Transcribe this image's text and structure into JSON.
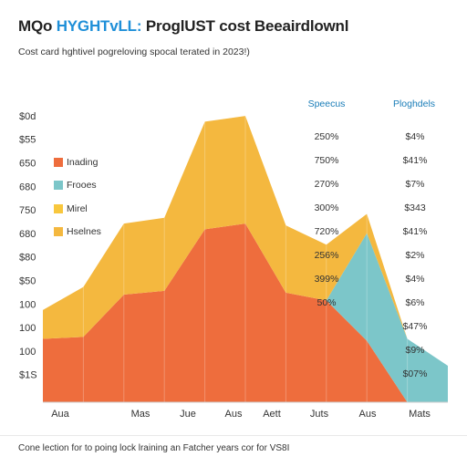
{
  "title_prefix": "MQo ",
  "title_highlight": "HYGHTvLL:",
  "title_rest": " ProglUST cost Beeairdlownl",
  "subtitle": "Cost card hghtivel pogreloving spocal terated in 2023!)",
  "footer": "Cone lection for to poing lock lraining an Fatcher years cor for VS8I",
  "chart_data": {
    "type": "area",
    "title": "MQo HYGHTvLL: ProglUST cost Beeairdlownl",
    "subtitle": "Cost card hghtivel pogreloving spocal terated in 2023!)",
    "y_tick_labels": [
      "$0d",
      "$55",
      "650",
      "680",
      "750",
      "680",
      "$80",
      "$50",
      "100",
      "100",
      "100",
      "$1S"
    ],
    "x_tick_labels": [
      "Aua",
      "Mas",
      "Jue",
      "Aus",
      "Aett",
      "Juts",
      "Aus",
      "Mats"
    ],
    "x": [
      0,
      1,
      2,
      3,
      4,
      5,
      6,
      7,
      8,
      9,
      10
    ],
    "series": [
      {
        "name": "Inading",
        "color": "#ee6d3d",
        "values": [
          33,
          34,
          56,
          58,
          90,
          93,
          57,
          53,
          32,
          0,
          0
        ]
      },
      {
        "name": "Frooes",
        "color": "#7cc6c9",
        "values": [
          0,
          0,
          0,
          0,
          0,
          0,
          0,
          0,
          56,
          33,
          19
        ]
      },
      {
        "name": "Mirel",
        "color": "#f8c73d",
        "values": [
          0,
          0,
          0,
          0,
          0,
          0,
          0,
          0,
          0,
          0,
          0
        ]
      },
      {
        "name": "Hselnes",
        "color": "#f4b83f",
        "values": [
          15,
          26,
          37,
          38,
          56,
          56,
          35,
          29,
          10,
          0,
          0
        ]
      }
    ],
    "stacked": true,
    "ylim": [
      0,
      150
    ],
    "grid": false,
    "legend_placement": "left",
    "table": {
      "headers": [
        "Speecus",
        "Ploghdels"
      ],
      "header_color": "#1a7db8",
      "rows": [
        [
          "250%",
          "$4%"
        ],
        [
          "750%",
          "$41%"
        ],
        [
          "270%",
          "$7%"
        ],
        [
          "300%",
          "$343"
        ],
        [
          "720%",
          "$41%"
        ],
        [
          "256%",
          "$2%"
        ],
        [
          "399%",
          "$4%"
        ],
        [
          "50%",
          "$6%"
        ],
        [
          "",
          "$47%"
        ],
        [
          "",
          "$9%"
        ],
        [
          "",
          "$07%"
        ]
      ]
    }
  }
}
